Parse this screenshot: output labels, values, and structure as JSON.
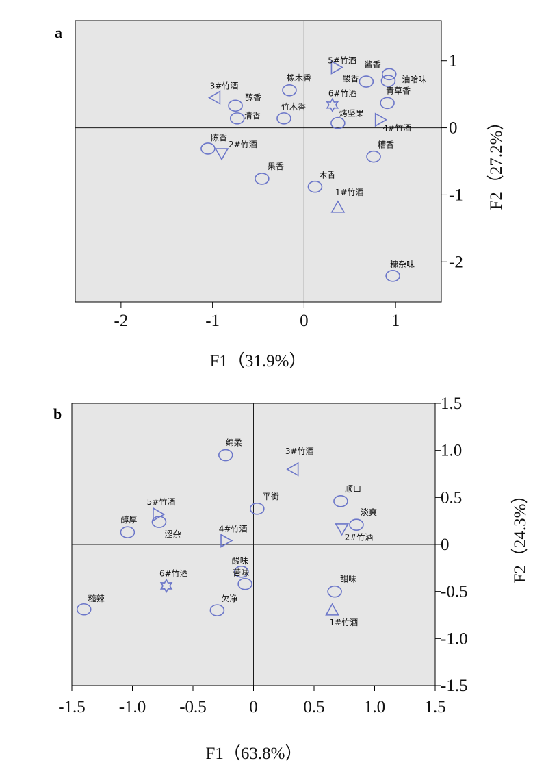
{
  "colors": {
    "marker": "#6b76c9",
    "panel_background": "#e6e6e6"
  },
  "chart_data": [
    {
      "type": "scatter",
      "panel": "a",
      "xlabel": "F1（31.9%）",
      "ylabel": "F2（27.2%）",
      "xlim": [
        -2.5,
        1.5
      ],
      "ylim": [
        -2.6,
        1.6
      ],
      "xticks": [
        -2,
        -1,
        0,
        1
      ],
      "xtick_labels": [
        "-2",
        "-1",
        "0",
        "1"
      ],
      "yticks": [
        -2,
        -1,
        0,
        1
      ],
      "ytick_labels": [
        "-2",
        "-1",
        "0",
        "1"
      ],
      "grid": false,
      "reference_lines": [
        0,
        0
      ],
      "points": [
        {
          "label": "5#竹酒",
          "x": 0.35,
          "y": 0.9,
          "marker": "tri-right"
        },
        {
          "label": "3#竹酒",
          "x": -0.97,
          "y": 0.45,
          "marker": "tri-left"
        },
        {
          "label": "6#竹酒",
          "x": 0.31,
          "y": 0.34,
          "marker": "star"
        },
        {
          "label": "4#竹酒",
          "x": 0.83,
          "y": 0.12,
          "marker": "tri-right"
        },
        {
          "label": "2#竹酒",
          "x": -0.9,
          "y": -0.38,
          "marker": "tri-down"
        },
        {
          "label": "1#竹酒",
          "x": 0.37,
          "y": -1.19,
          "marker": "tri-up"
        },
        {
          "label": "酱香",
          "x": 0.93,
          "y": 0.8,
          "marker": "circle"
        },
        {
          "label": "酸香",
          "x": 0.68,
          "y": 0.69,
          "marker": "circle"
        },
        {
          "label": "油哈味",
          "x": 0.92,
          "y": 0.7,
          "marker": "circle"
        },
        {
          "label": "青草香",
          "x": 0.91,
          "y": 0.37,
          "marker": "circle"
        },
        {
          "label": "橡木香",
          "x": -0.16,
          "y": 0.56,
          "marker": "circle"
        },
        {
          "label": "醇香",
          "x": -0.75,
          "y": 0.33,
          "marker": "circle"
        },
        {
          "label": "清香",
          "x": -0.73,
          "y": 0.14,
          "marker": "circle"
        },
        {
          "label": "竹木香",
          "x": -0.22,
          "y": 0.14,
          "marker": "circle"
        },
        {
          "label": "烤坚果",
          "x": 0.37,
          "y": 0.07,
          "marker": "circle"
        },
        {
          "label": "陈香",
          "x": -1.05,
          "y": -0.31,
          "marker": "circle"
        },
        {
          "label": "糟香",
          "x": 0.76,
          "y": -0.43,
          "marker": "circle"
        },
        {
          "label": "果香",
          "x": -0.46,
          "y": -0.76,
          "marker": "circle"
        },
        {
          "label": "木香",
          "x": 0.12,
          "y": -0.88,
          "marker": "circle"
        },
        {
          "label": "糠杂味",
          "x": 0.97,
          "y": -2.21,
          "marker": "circle"
        }
      ]
    },
    {
      "type": "scatter",
      "panel": "b",
      "xlabel": "F1（63.8%）",
      "ylabel": "F2（24.3%）",
      "xlim": [
        -1.5,
        1.5
      ],
      "ylim": [
        -1.5,
        1.5
      ],
      "xticks": [
        -1.5,
        -1.0,
        -0.5,
        0,
        0.5,
        1.0,
        1.5
      ],
      "xtick_labels": [
        "-1.5",
        "-1.0",
        "-0.5",
        "0",
        "0.5",
        "1.0",
        "1.5"
      ],
      "yticks": [
        -1.5,
        -1.0,
        -0.5,
        0,
        0.5,
        1.0,
        1.5
      ],
      "ytick_labels": [
        "-1.5",
        "-1.0",
        "-0.5",
        "0",
        "0.5",
        "1.0",
        "1.5"
      ],
      "grid": false,
      "reference_lines": [
        0,
        0
      ],
      "points": [
        {
          "label": "绵柔",
          "x": -0.23,
          "y": 0.95,
          "marker": "circle"
        },
        {
          "label": "3#竹酒",
          "x": 0.33,
          "y": 0.8,
          "marker": "tri-left"
        },
        {
          "label": "顺口",
          "x": 0.72,
          "y": 0.46,
          "marker": "circle"
        },
        {
          "label": "平衡",
          "x": 0.03,
          "y": 0.38,
          "marker": "circle"
        },
        {
          "label": "淡爽",
          "x": 0.85,
          "y": 0.21,
          "marker": "circle"
        },
        {
          "label": "2#竹酒",
          "x": 0.73,
          "y": 0.17,
          "marker": "tri-down"
        },
        {
          "label": "5#竹酒",
          "x": -0.79,
          "y": 0.32,
          "marker": "tri-right"
        },
        {
          "label": "醇厚",
          "x": -1.04,
          "y": 0.13,
          "marker": "circle"
        },
        {
          "label": "涩杂",
          "x": -0.78,
          "y": 0.24,
          "marker": "circle"
        },
        {
          "label": "4#竹酒",
          "x": -0.23,
          "y": 0.04,
          "marker": "tri-right"
        },
        {
          "label": "酸味",
          "x": -0.1,
          "y": -0.29,
          "marker": "circle"
        },
        {
          "label": "苦味",
          "x": -0.07,
          "y": -0.42,
          "marker": "circle"
        },
        {
          "label": "6#竹酒",
          "x": -0.72,
          "y": -0.44,
          "marker": "star"
        },
        {
          "label": "甜味",
          "x": 0.67,
          "y": -0.5,
          "marker": "circle"
        },
        {
          "label": "糙辣",
          "x": -1.4,
          "y": -0.69,
          "marker": "circle"
        },
        {
          "label": "欠净",
          "x": -0.3,
          "y": -0.7,
          "marker": "circle"
        },
        {
          "label": "1#竹酒",
          "x": 0.65,
          "y": -0.7,
          "marker": "tri-up"
        }
      ]
    }
  ]
}
